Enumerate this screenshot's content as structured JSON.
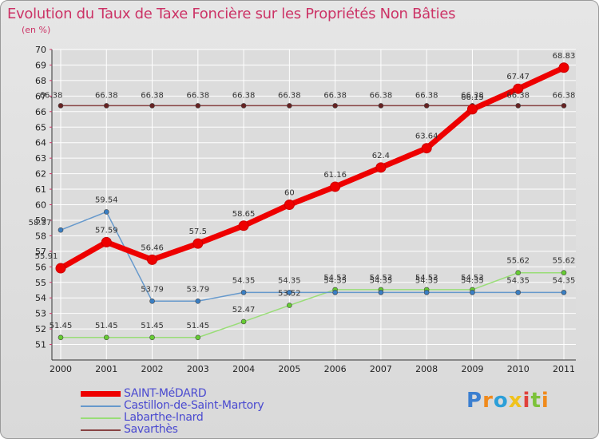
{
  "title": "Evolution du Taux de Taxe Foncière sur les Propriétés Non Bâties",
  "unit": "(en %)",
  "logo": "Proxiti",
  "colors": {
    "title": "#cc3366",
    "legend_text": "#4a4ad0",
    "grid": "#ffffff"
  },
  "chart_data": {
    "type": "line",
    "title": "Evolution du Taux de Taxe Foncière sur les Propriétés Non Bâties",
    "ylabel": "(en %)",
    "xlabel": "",
    "ylim": [
      50,
      70
    ],
    "grid": true,
    "x": [
      "2000",
      "2001",
      "2002",
      "2003",
      "2004",
      "2005",
      "2006",
      "2007",
      "2008",
      "2009",
      "2010",
      "2011"
    ],
    "y_ticks": [
      51,
      52,
      53,
      54,
      55,
      56,
      57,
      58,
      59,
      60,
      61,
      62,
      63,
      64,
      65,
      66,
      67,
      68,
      69,
      70
    ],
    "series": [
      {
        "name": "SAINT-MéDARD",
        "color": "#ee0000",
        "marker": "#ee0000",
        "width": 7,
        "values": [
          55.91,
          57.59,
          56.46,
          57.5,
          58.65,
          60,
          61.16,
          62.4,
          63.64,
          66.15,
          67.47,
          68.83
        ],
        "labels": [
          "55.91",
          "57.59",
          "56.46",
          "57.5",
          "58.65",
          "60",
          "61.16",
          "62.4",
          "63.64",
          "66.15",
          "67.47",
          "68.83"
        ]
      },
      {
        "name": "Castillon-de-Saint-Martory",
        "color": "#6699cc",
        "marker": "#3a7fc4",
        "width": 1.5,
        "values": [
          58.37,
          59.54,
          53.79,
          53.79,
          54.35,
          54.35,
          54.35,
          54.35,
          54.35,
          54.35,
          54.35,
          54.35
        ],
        "labels": [
          "58.37",
          "59.54",
          "53.79",
          "53.79",
          "54.35",
          "54.35",
          "54.35",
          "54.35",
          "54.35",
          "54.35",
          "54.35",
          "54.35"
        ]
      },
      {
        "name": "Labarthe-Inard",
        "color": "#99dd77",
        "marker": "#66cc33",
        "width": 1.5,
        "values": [
          51.45,
          51.45,
          51.45,
          51.45,
          52.47,
          53.52,
          54.53,
          54.53,
          54.53,
          54.53,
          55.62,
          55.62
        ],
        "labels": [
          "51.45",
          "51.45",
          "51.45",
          "51.45",
          "52.47",
          "53.52",
          "54.53",
          "54.53",
          "54.53",
          "54.53",
          "55.62",
          "55.62"
        ]
      },
      {
        "name": "Savarthès",
        "color": "#884444",
        "marker": "#662222",
        "width": 1.5,
        "values": [
          66.38,
          66.38,
          66.38,
          66.38,
          66.38,
          66.38,
          66.38,
          66.38,
          66.38,
          66.38,
          66.38,
          66.38
        ],
        "labels": [
          "66.38",
          "66.38",
          "66.38",
          "66.38",
          "66.38",
          "66.38",
          "66.38",
          "66.38",
          "66.38",
          "66.38",
          "66.38",
          "66.38"
        ]
      }
    ]
  }
}
